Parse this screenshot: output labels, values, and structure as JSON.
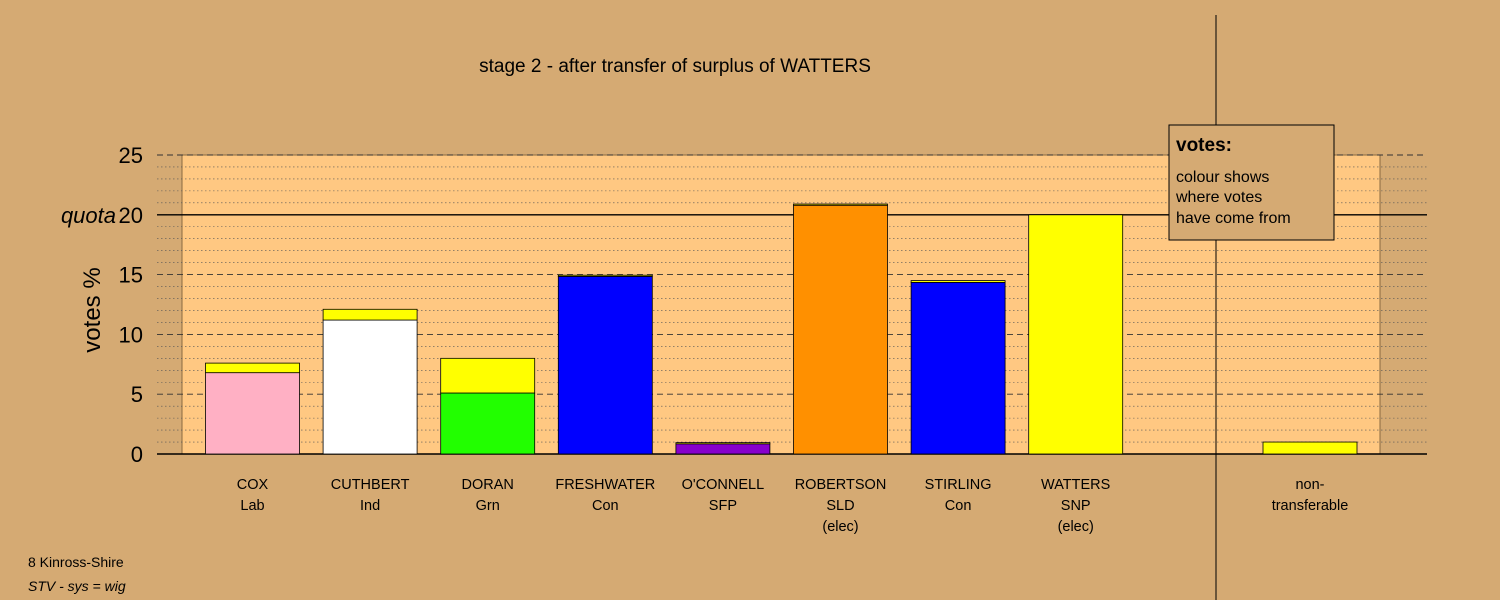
{
  "chart_data": {
    "type": "bar",
    "title": "stage 2 - after transfer of surplus of WATTERS",
    "ylabel": "votes %",
    "ylim": [
      0,
      25
    ],
    "yticks": [
      0,
      5,
      10,
      15,
      20,
      25
    ],
    "quota": {
      "label": "quota",
      "value": 20
    },
    "candidates": [
      {
        "name": "COX",
        "party": "Lab",
        "status": "",
        "segments": [
          {
            "value": 6.8,
            "color": "#FFB0C4"
          },
          {
            "value": 0.8,
            "color": "#FFFF00"
          }
        ]
      },
      {
        "name": "CUTHBERT",
        "party": "Ind",
        "status": "",
        "segments": [
          {
            "value": 11.2,
            "color": "#FFFFFF"
          },
          {
            "value": 0.9,
            "color": "#FFFF00"
          }
        ]
      },
      {
        "name": "DORAN",
        "party": "Grn",
        "status": "",
        "segments": [
          {
            "value": 5.1,
            "color": "#22FF00"
          },
          {
            "value": 2.9,
            "color": "#FFFF00"
          }
        ]
      },
      {
        "name": "FRESHWATER",
        "party": "Con",
        "status": "",
        "segments": [
          {
            "value": 14.85,
            "color": "#0000FF"
          },
          {
            "value": 0.1,
            "color": "#FFFF00"
          }
        ]
      },
      {
        "name": "O'CONNELL",
        "party": "SFP",
        "status": "",
        "segments": [
          {
            "value": 0.85,
            "color": "#8800CC"
          },
          {
            "value": 0.1,
            "color": "#FFFF00"
          }
        ]
      },
      {
        "name": "ROBERTSON",
        "party": "SLD",
        "status": "(elec)",
        "segments": [
          {
            "value": 20.8,
            "color": "#FF9000"
          },
          {
            "value": 0.1,
            "color": "#FFFF00"
          }
        ]
      },
      {
        "name": "STIRLING",
        "party": "Con",
        "status": "",
        "segments": [
          {
            "value": 14.35,
            "color": "#0000FF"
          },
          {
            "value": 0.15,
            "color": "#FFFF00"
          }
        ]
      },
      {
        "name": "WATTERS",
        "party": "SNP",
        "status": "(elec)",
        "segments": [
          {
            "value": 20.0,
            "color": "#FFFF00"
          }
        ]
      }
    ],
    "non_transferable": {
      "label_line1": "non-",
      "label_line2": "transferable",
      "value": 1.0,
      "color": "#FFFF00"
    },
    "legend": {
      "title": "votes:",
      "lines": [
        "colour shows",
        "where votes",
        "have come from"
      ],
      "position": "top-right"
    },
    "colors": {
      "background": "#D5AA73",
      "plot_background": "#FFC882"
    }
  },
  "footer": {
    "line1": "8 Kinross-Shire",
    "line2": "STV - sys = wig"
  }
}
